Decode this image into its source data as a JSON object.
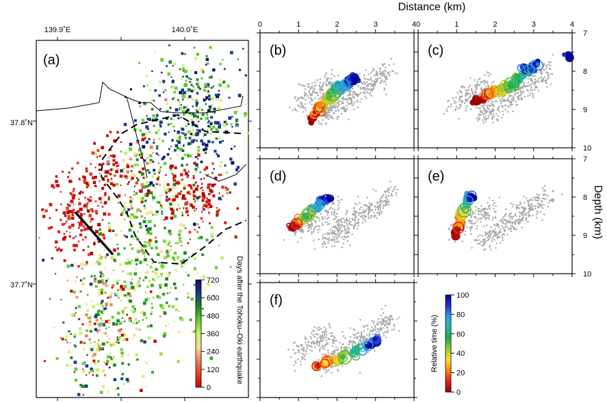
{
  "figure": {
    "top_axis_title": "Distance (km)",
    "right_axis_title": "Depth (km)"
  },
  "chart_data": [
    {
      "panel": "(a)",
      "type": "scatter",
      "xtick_labels": [
        "139.9˚E",
        "140.0˚E"
      ],
      "ytick_labels": [
        "37.8˚N",
        "37.7˚N"
      ],
      "colorbar": {
        "label": "Days after the Tohoku–Oki earthquake",
        "ticks": [
          "720",
          "600",
          "480",
          "360",
          "240",
          "120",
          "0"
        ],
        "range": [
          0,
          720
        ],
        "colors": [
          "#cc0000",
          "#e04020",
          "#f08060",
          "#f8e090",
          "#ccee66",
          "#66cc33",
          "#228822",
          "#1a3a8a",
          "#0a1060"
        ]
      },
      "clusters": [
        {
          "lon": 139.935,
          "lat": 37.675,
          "n": 320,
          "spread_lon": 0.018,
          "spread_lat": 0.025,
          "color_mode": "mixed"
        },
        {
          "lon": 139.915,
          "lat": 37.745,
          "n": 160,
          "spread_lon": 0.012,
          "spread_lat": 0.014,
          "color_mode": "red"
        },
        {
          "lon": 139.975,
          "lat": 37.72,
          "n": 380,
          "spread_lon": 0.022,
          "spread_lat": 0.03,
          "color_mode": "green"
        },
        {
          "lon": 140.005,
          "lat": 37.805,
          "n": 420,
          "spread_lon": 0.02,
          "spread_lat": 0.02,
          "color_mode": "blue"
        },
        {
          "lon": 139.965,
          "lat": 37.765,
          "n": 140,
          "spread_lon": 0.012,
          "spread_lat": 0.018,
          "color_mode": "mixed"
        },
        {
          "lon": 140.005,
          "lat": 37.755,
          "n": 140,
          "spread_lon": 0.015,
          "spread_lat": 0.01,
          "color_mode": "red"
        },
        {
          "lon": 139.94,
          "lat": 37.77,
          "n": 60,
          "spread_lon": 0.01,
          "spread_lat": 0.01,
          "color_mode": "red"
        }
      ]
    },
    {
      "panel": "(b)",
      "type": "scatter",
      "xlabel": "Distance (km)",
      "xlim": [
        0,
        4
      ],
      "xticks": [
        0,
        1,
        2,
        3,
        4
      ],
      "points": [
        [
          1.3,
          9.25
        ],
        [
          1.4,
          9.15
        ],
        [
          1.5,
          9.05
        ],
        [
          1.55,
          8.95
        ],
        [
          1.6,
          8.9
        ],
        [
          1.7,
          8.8
        ],
        [
          1.75,
          8.75
        ],
        [
          1.85,
          8.65
        ],
        [
          1.9,
          8.6
        ],
        [
          2.0,
          8.5
        ],
        [
          2.05,
          8.45
        ],
        [
          2.1,
          8.4
        ],
        [
          2.2,
          8.35
        ],
        [
          2.3,
          8.3
        ],
        [
          2.35,
          8.25
        ],
        [
          2.4,
          8.2
        ],
        [
          2.45,
          8.2
        ]
      ]
    },
    {
      "panel": "(c)",
      "type": "scatter",
      "xlim": [
        0,
        4
      ],
      "xticks": [
        0,
        1,
        2,
        3,
        4
      ],
      "ylabel": "Depth (km)",
      "ylim": [
        7,
        10
      ],
      "yticks": [
        7,
        8,
        9,
        10
      ],
      "points": [
        [
          1.5,
          8.8
        ],
        [
          1.6,
          8.75
        ],
        [
          1.7,
          8.7
        ],
        [
          1.8,
          8.6
        ],
        [
          1.9,
          8.55
        ],
        [
          2.0,
          8.5
        ],
        [
          2.1,
          8.5
        ],
        [
          2.2,
          8.45
        ],
        [
          2.3,
          8.4
        ],
        [
          2.4,
          8.35
        ],
        [
          2.5,
          8.3
        ],
        [
          2.6,
          8.2
        ],
        [
          2.7,
          8.1
        ],
        [
          2.8,
          8.0
        ],
        [
          2.9,
          7.95
        ],
        [
          3.0,
          7.9
        ],
        [
          3.1,
          7.8
        ],
        [
          2.7,
          7.9
        ],
        [
          3.9,
          7.6
        ]
      ]
    },
    {
      "panel": "(d)",
      "type": "scatter",
      "xlim": [
        0,
        4
      ],
      "ylim": [
        7,
        10
      ],
      "points": [
        [
          0.85,
          8.75
        ],
        [
          0.95,
          8.7
        ],
        [
          1.05,
          8.6
        ],
        [
          1.15,
          8.55
        ],
        [
          1.25,
          8.45
        ],
        [
          1.35,
          8.35
        ],
        [
          1.45,
          8.25
        ],
        [
          1.55,
          8.2
        ],
        [
          1.65,
          8.1
        ],
        [
          1.75,
          8.05
        ]
      ]
    },
    {
      "panel": "(e)",
      "type": "scatter",
      "xlim": [
        0,
        4
      ],
      "ylim": [
        7,
        10
      ],
      "yticks": [
        7,
        8,
        9,
        10
      ],
      "points": [
        [
          0.95,
          8.95
        ],
        [
          1.05,
          8.8
        ],
        [
          1.1,
          8.65
        ],
        [
          1.15,
          8.5
        ],
        [
          1.2,
          8.35
        ],
        [
          1.25,
          8.2
        ],
        [
          1.3,
          8.1
        ],
        [
          1.35,
          8.0
        ],
        [
          1.4,
          7.95
        ]
      ]
    },
    {
      "panel": "(f)",
      "type": "scatter",
      "xlim": [
        0,
        4
      ],
      "ylim": [
        7,
        10
      ],
      "colorbar": {
        "label": "Relative time (%)",
        "ticks": [
          "100",
          "80",
          "60",
          "40",
          "20",
          "0"
        ],
        "range": [
          0,
          100
        ]
      },
      "points": [
        [
          1.5,
          9.15
        ],
        [
          1.6,
          9.1
        ],
        [
          1.75,
          9.05
        ],
        [
          1.9,
          9.05
        ],
        [
          2.05,
          9.0
        ],
        [
          2.2,
          8.95
        ],
        [
          2.4,
          8.85
        ],
        [
          2.6,
          8.75
        ],
        [
          2.8,
          8.65
        ],
        [
          2.95,
          8.55
        ],
        [
          3.0,
          8.45
        ]
      ]
    }
  ],
  "background_cloud": {
    "color": "#a8a8a8",
    "segments": [
      {
        "x0": 0.9,
        "y0": 8.85,
        "x1": 1.9,
        "y1": 8.25,
        "n": 150
      },
      {
        "x0": 1.6,
        "y0": 9.15,
        "x1": 3.4,
        "y1": 7.95,
        "n": 330
      }
    ]
  }
}
